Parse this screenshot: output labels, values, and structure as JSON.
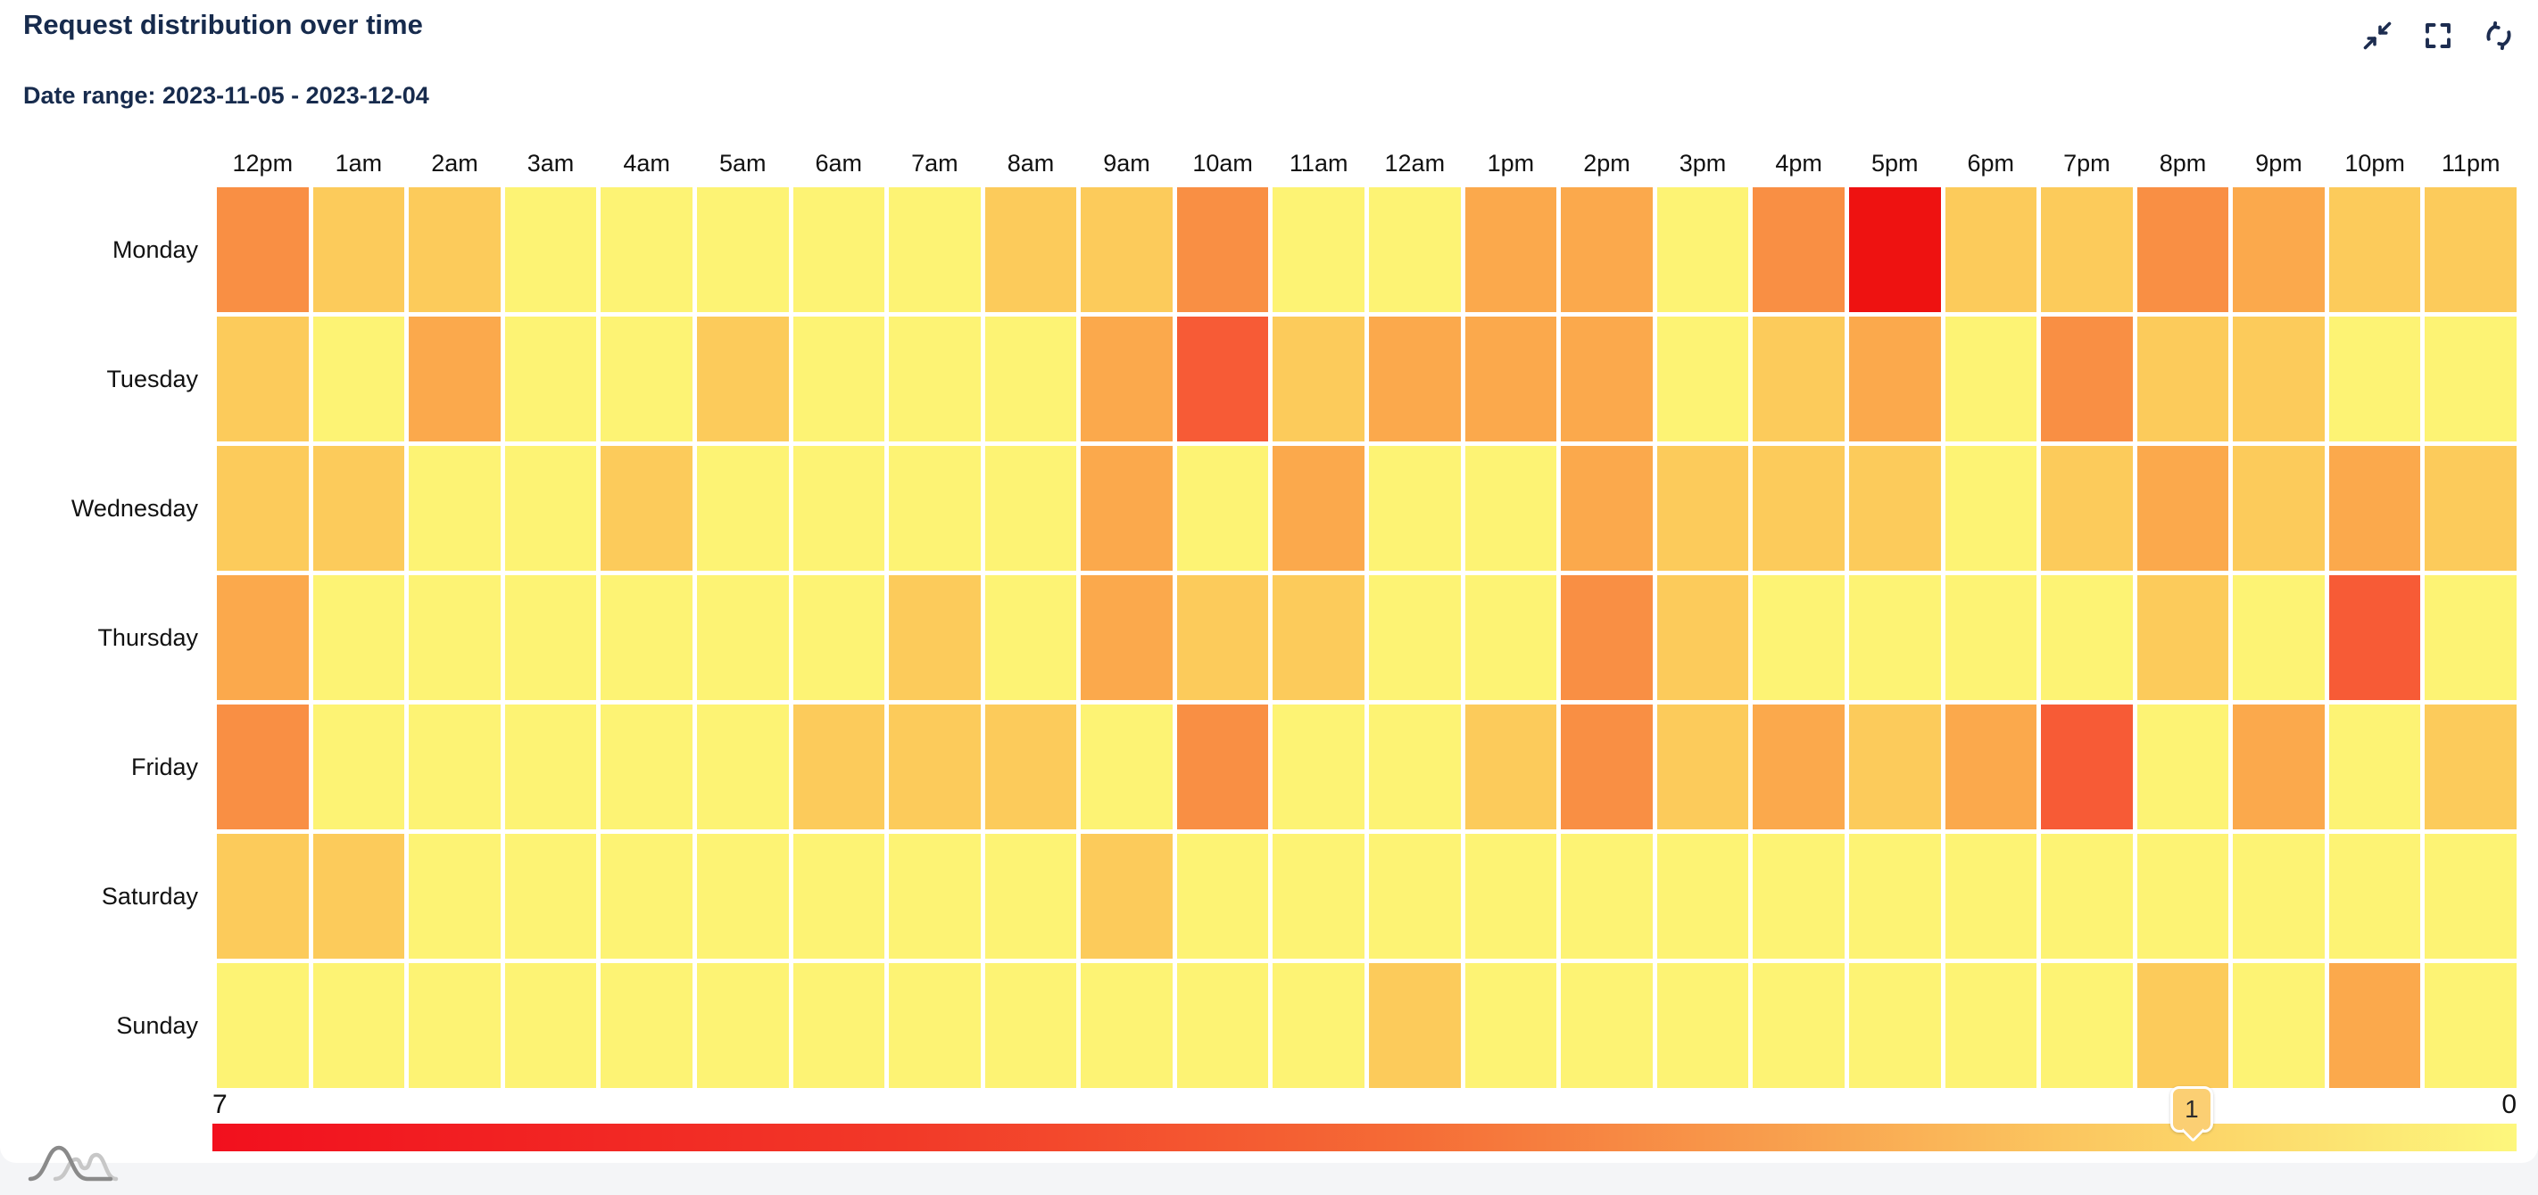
{
  "header": {
    "title": "Request distribution over time",
    "subtitle": "Date range: 2023-11-05 - 2023-12-04"
  },
  "toolbar": {
    "icons": [
      "collapse-icon",
      "fullscreen-icon",
      "refresh-icon"
    ]
  },
  "colors": {
    "title_text": "#172B4D",
    "axis_text": "#111111",
    "icon": "#1D2D50",
    "card_bg": "#FFFFFF",
    "page_bg": "#F4F5F7",
    "marker_bg": "#FBCF73"
  },
  "chart_data": {
    "type": "heatmap",
    "title": "Request distribution over time",
    "x_categories": [
      "12pm",
      "1am",
      "2am",
      "3am",
      "4am",
      "5am",
      "6am",
      "7am",
      "8am",
      "9am",
      "10am",
      "11am",
      "12am",
      "1pm",
      "2pm",
      "3pm",
      "4pm",
      "5pm",
      "6pm",
      "7pm",
      "8pm",
      "9pm",
      "10pm",
      "11pm"
    ],
    "y_categories": [
      "Monday",
      "Tuesday",
      "Wednesday",
      "Thursday",
      "Friday",
      "Saturday",
      "Sunday"
    ],
    "values": [
      [
        5,
        3,
        3,
        1,
        1,
        1,
        1,
        1,
        3,
        3,
        5,
        1,
        1,
        4,
        4,
        1,
        5,
        7,
        3,
        3,
        5,
        4,
        3,
        3
      ],
      [
        3,
        1,
        4,
        1,
        1,
        3,
        1,
        1,
        1,
        4,
        6,
        3,
        4,
        4,
        4,
        1,
        3,
        4,
        1,
        5,
        3,
        3,
        1,
        1
      ],
      [
        3,
        3,
        1,
        1,
        3,
        1,
        1,
        1,
        1,
        4,
        1,
        4,
        1,
        1,
        4,
        3,
        3,
        3,
        1,
        3,
        4,
        3,
        4,
        3
      ],
      [
        4,
        1,
        1,
        1,
        1,
        1,
        1,
        3,
        1,
        4,
        3,
        3,
        1,
        1,
        5,
        3,
        1,
        1,
        1,
        1,
        3,
        1,
        6,
        1
      ],
      [
        5,
        1,
        1,
        1,
        1,
        1,
        3,
        3,
        3,
        1,
        5,
        1,
        1,
        3,
        5,
        3,
        4,
        3,
        4,
        6,
        1,
        4,
        1,
        3
      ],
      [
        3,
        3,
        1,
        1,
        1,
        1,
        1,
        1,
        1,
        3,
        1,
        1,
        1,
        1,
        1,
        1,
        1,
        1,
        1,
        1,
        1,
        1,
        1,
        1
      ],
      [
        1,
        1,
        1,
        1,
        1,
        1,
        1,
        1,
        1,
        1,
        1,
        1,
        3,
        1,
        1,
        1,
        1,
        1,
        1,
        1,
        3,
        1,
        4,
        1
      ]
    ],
    "value_min": 0,
    "value_max": 7,
    "palette": {
      "0": "#FEFA82",
      "1": "#FDF374",
      "2": "#FDE566",
      "3": "#FCCB5B",
      "4": "#FBA94C",
      "5": "#F98F44",
      "6": "#F75B36",
      "7": "#EE1211"
    },
    "legend": {
      "left_label": "7",
      "right_label": "0",
      "marker_value": "1",
      "marker_position_pct": 85.9,
      "gradient_stops": [
        {
          "pos": 0,
          "color": "#F2101E"
        },
        {
          "pos": 30,
          "color": "#F23928"
        },
        {
          "pos": 52,
          "color": "#F56C36"
        },
        {
          "pos": 80,
          "color": "#FBC55F"
        },
        {
          "pos": 100,
          "color": "#FDF77D"
        }
      ]
    }
  }
}
